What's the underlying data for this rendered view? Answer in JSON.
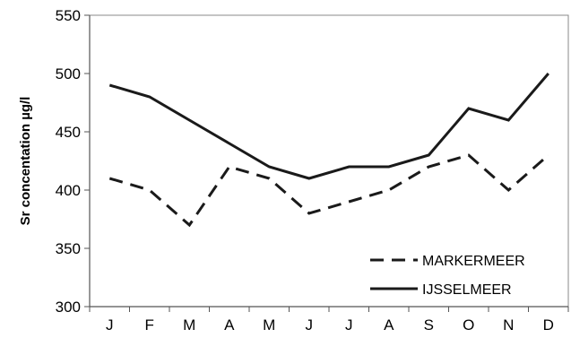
{
  "chart_data": {
    "type": "line",
    "categories": [
      "J",
      "F",
      "M",
      "A",
      "M",
      "J",
      "J",
      "A",
      "S",
      "O",
      "N",
      "D"
    ],
    "ylabel": "Sr concentation µg/l",
    "xlabel": "",
    "ylim": [
      300,
      550
    ],
    "yticks": [
      "300",
      "350",
      "400",
      "450",
      "500",
      "550"
    ],
    "grid": false,
    "legend_position": "bottom-right",
    "series": [
      {
        "name": "MARKERMEER",
        "style": "dashed",
        "color": "#1a1a1a",
        "values": [
          410,
          400,
          370,
          420,
          410,
          380,
          390,
          400,
          420,
          430,
          400,
          430
        ]
      },
      {
        "name": "IJSSELMEER",
        "style": "solid",
        "color": "#1a1a1a",
        "values": [
          490,
          480,
          460,
          440,
          420,
          410,
          420,
          420,
          430,
          470,
          460,
          500
        ]
      }
    ]
  }
}
